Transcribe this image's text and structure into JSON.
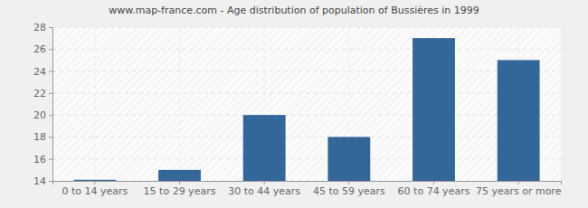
{
  "chart_data": {
    "type": "bar",
    "title": "www.map-france.com - Age distribution of population of Bussières in 1999",
    "categories": [
      "0 to 14 years",
      "15 to 29 years",
      "30 to 44 years",
      "45 to 59 years",
      "60 to 74 years",
      "75 years or more"
    ],
    "values": [
      14.1,
      15,
      20,
      18,
      27,
      25
    ],
    "color": "#336699",
    "ylim": [
      14,
      28
    ],
    "yticks": [
      14,
      16,
      18,
      20,
      22,
      24,
      26,
      28
    ],
    "grid": true
  }
}
